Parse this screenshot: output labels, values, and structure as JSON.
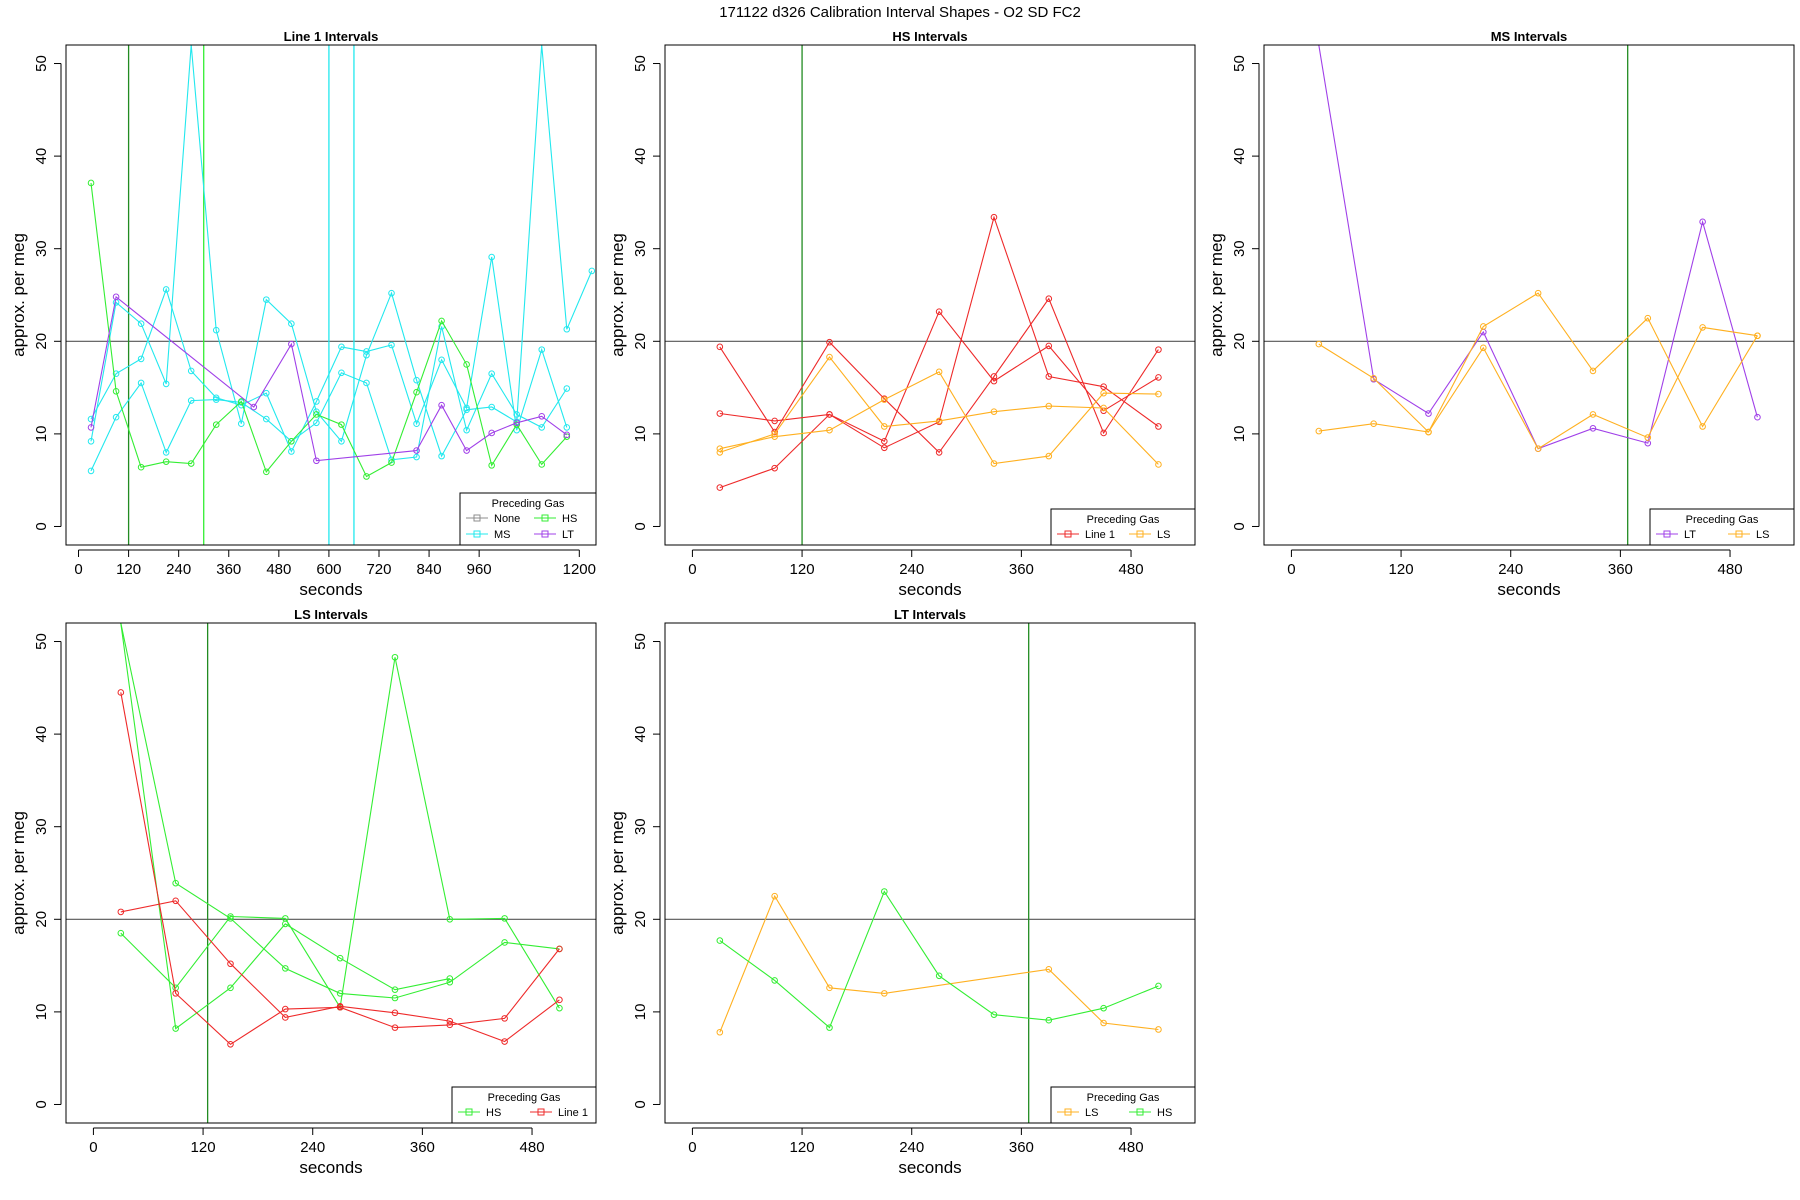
{
  "title": "171122   d326   Calibration Interval Shapes - O2 SD FC2",
  "colors": {
    "None": "#8c8c8c",
    "MS": "#22e8ee",
    "HS": "#33ee33",
    "LT": "#a040e8",
    "Line 1": "#ee2a2a",
    "LS": "#ffb020",
    "vline": "#228b22",
    "hline": "#555555"
  },
  "chart_data": [
    {
      "type": "line",
      "title": "Line 1 Intervals",
      "xlabel": "seconds",
      "ylabel": "approx. per meg",
      "xlim": [
        -30,
        1240
      ],
      "ylim": [
        -2,
        52
      ],
      "xticks": [
        0,
        120,
        240,
        360,
        480,
        600,
        720,
        840,
        960,
        1200
      ],
      "yticks": [
        0,
        10,
        20,
        30,
        40,
        50
      ],
      "hline": 20,
      "vlines": [
        {
          "x": 120,
          "color": "vline"
        },
        {
          "x": 300,
          "color": "HS"
        },
        {
          "x": 600,
          "color": "MS"
        },
        {
          "x": 660,
          "color": "MS"
        }
      ],
      "legend": {
        "title": "Preceding Gas",
        "position": "bottom-right",
        "cols": 2,
        "entries": [
          "None",
          "HS",
          "MS",
          "LT"
        ]
      },
      "series": [
        {
          "name": "MS",
          "x": [
            30,
            90,
            150,
            210,
            270,
            330,
            390,
            450,
            510,
            570,
            630,
            690,
            750,
            810,
            870,
            930,
            990,
            1050,
            1110,
            1170
          ],
          "y": [
            11.6,
            16.5,
            18.1,
            25.6,
            16.8,
            13.9,
            13.1,
            14.4,
            8.1,
            13.5,
            19.4,
            18.9,
            19.6,
            11.1,
            18.0,
            12.8,
            29.1,
            10.4,
            19.1,
            10.7
          ]
        },
        {
          "name": "MS",
          "x": [
            30,
            90,
            150,
            210,
            270,
            330,
            390,
            450,
            510,
            570,
            630,
            690,
            750,
            810,
            870,
            930,
            990,
            1050,
            1110,
            1170
          ],
          "y": [
            6.0,
            11.8,
            15.5,
            8.0,
            13.6,
            13.7,
            13.4,
            11.6,
            9.2,
            11.2,
            16.6,
            15.5,
            7.2,
            7.5,
            21.6,
            10.4,
            16.5,
            12.1,
            10.7,
            14.9
          ]
        },
        {
          "name": "MS",
          "x": [
            30,
            90,
            150,
            210,
            270,
            330,
            390,
            450,
            510,
            570,
            630,
            690,
            750,
            810,
            870,
            930,
            990,
            1050,
            1110,
            1170,
            1230
          ],
          "y": [
            9.2,
            24.2,
            21.9,
            15.4,
            52.0,
            21.2,
            11.1,
            24.5,
            21.9,
            12.4,
            9.2,
            18.5,
            25.2,
            15.8,
            7.6,
            12.6,
            12.9,
            11.3,
            52.0,
            21.3,
            27.6
          ]
        },
        {
          "name": "HS",
          "x": [
            30,
            90,
            150,
            210,
            270,
            330,
            390,
            450,
            510,
            570,
            630,
            690,
            750,
            810,
            870,
            930,
            990,
            1050,
            1110,
            1170
          ],
          "y": [
            37.1,
            14.6,
            6.4,
            7.0,
            6.8,
            11.0,
            13.5,
            5.9,
            9.2,
            12.1,
            11.0,
            5.4,
            6.9,
            14.5,
            22.2,
            17.5,
            6.6,
            11.0,
            6.7,
            9.7
          ]
        },
        {
          "name": "LT",
          "x": [
            30,
            90,
            420,
            510,
            570,
            810,
            870,
            930,
            990,
            1050,
            1110,
            1170
          ],
          "y": [
            10.7,
            24.8,
            12.9,
            19.7,
            7.1,
            8.2,
            13.1,
            8.2,
            10.1,
            11.2,
            11.9,
            9.9
          ]
        }
      ]
    },
    {
      "type": "line",
      "title": "HS Intervals",
      "xlabel": "seconds",
      "ylabel": "approx. per meg",
      "xlim": [
        -30,
        550
      ],
      "ylim": [
        -2,
        52
      ],
      "xticks": [
        0,
        120,
        240,
        360,
        480
      ],
      "yticks": [
        0,
        10,
        20,
        30,
        40,
        50
      ],
      "hline": 20,
      "vlines": [
        {
          "x": 120,
          "color": "vline"
        }
      ],
      "legend": {
        "title": "Preceding Gas",
        "position": "bottom-right",
        "cols": 2,
        "entries": [
          "Line 1",
          "LS"
        ]
      },
      "series": [
        {
          "name": "Line 1",
          "x": [
            30,
            90,
            150,
            210,
            270,
            330,
            390,
            450,
            510
          ],
          "y": [
            19.4,
            10.2,
            19.9,
            13.8,
            8.0,
            16.2,
            24.6,
            10.1,
            19.1
          ]
        },
        {
          "name": "Line 1",
          "x": [
            30,
            90,
            150,
            210,
            270,
            330,
            390,
            450,
            510
          ],
          "y": [
            12.2,
            11.4,
            12.1,
            9.2,
            23.2,
            15.7,
            19.5,
            12.5,
            16.1
          ]
        },
        {
          "name": "Line 1",
          "x": [
            30,
            90,
            150,
            210,
            270,
            330,
            390,
            450,
            510
          ],
          "y": [
            4.2,
            6.3,
            12.1,
            8.5,
            11.3,
            33.4,
            16.2,
            15.1,
            10.8
          ]
        },
        {
          "name": "LS",
          "x": [
            30,
            90,
            150,
            210,
            270,
            330,
            390,
            450,
            510
          ],
          "y": [
            8.0,
            10.0,
            18.3,
            10.8,
            11.4,
            12.4,
            13.0,
            12.8,
            6.7
          ]
        },
        {
          "name": "LS",
          "x": [
            30,
            90,
            150,
            210,
            270,
            330,
            390,
            450,
            510
          ],
          "y": [
            8.4,
            9.7,
            10.4,
            13.7,
            16.7,
            6.8,
            7.6,
            14.4,
            14.3
          ]
        }
      ]
    },
    {
      "type": "line",
      "title": "MS Intervals",
      "xlabel": "seconds",
      "ylabel": "approx. per meg",
      "xlim": [
        -30,
        550
      ],
      "ylim": [
        -2,
        52
      ],
      "xticks": [
        0,
        120,
        240,
        360,
        480
      ],
      "yticks": [
        0,
        10,
        20,
        30,
        40,
        50
      ],
      "hline": 20,
      "vlines": [
        {
          "x": 368,
          "color": "vline"
        }
      ],
      "legend": {
        "title": "Preceding Gas",
        "position": "bottom-right",
        "cols": 2,
        "entries": [
          "LT",
          "LS"
        ]
      },
      "series": [
        {
          "name": "LT",
          "x": [
            30,
            90,
            150,
            210,
            270,
            330,
            390,
            450,
            510
          ],
          "y": [
            52.0,
            15.9,
            12.2,
            21.0,
            8.4,
            10.6,
            9.0,
            32.9,
            11.8
          ]
        },
        {
          "name": "LS",
          "x": [
            30,
            90,
            150,
            210,
            270,
            330,
            390,
            450,
            510
          ],
          "y": [
            19.7,
            16.0,
            10.2,
            21.6,
            25.2,
            16.8,
            22.5,
            10.8,
            20.6
          ]
        },
        {
          "name": "LS",
          "x": [
            30,
            90,
            150,
            210,
            270,
            330,
            390,
            450,
            510
          ],
          "y": [
            10.3,
            11.1,
            10.2,
            19.3,
            8.4,
            12.1,
            9.6,
            21.5,
            20.6
          ]
        }
      ]
    },
    {
      "type": "line",
      "title": "LS Intervals",
      "xlabel": "seconds",
      "ylabel": "approx. per meg",
      "xlim": [
        -30,
        550
      ],
      "ylim": [
        -2,
        52
      ],
      "xticks": [
        0,
        120,
        240,
        360,
        480
      ],
      "yticks": [
        0,
        10,
        20,
        30,
        40,
        50
      ],
      "hline": 20,
      "vlines": [
        {
          "x": 125,
          "color": "vline"
        }
      ],
      "legend": {
        "title": "Preceding Gas",
        "position": "bottom-right",
        "cols": 2,
        "entries": [
          "HS",
          "Line 1"
        ]
      },
      "series": [
        {
          "name": "HS",
          "x": [
            30,
            90,
            150,
            210,
            270,
            330,
            390,
            450,
            510
          ],
          "y": [
            18.5,
            12.6,
            20.3,
            20.1,
            10.5,
            48.3,
            20.0,
            20.1,
            10.4
          ]
        },
        {
          "name": "HS",
          "x": [
            30,
            90,
            150,
            210,
            270,
            330,
            390,
            450,
            510
          ],
          "y": [
            52.0,
            23.9,
            20.1,
            14.7,
            12.0,
            11.5,
            13.2,
            17.5,
            16.8
          ]
        },
        {
          "name": "HS",
          "x": [
            30,
            90,
            150,
            210,
            270,
            330,
            390
          ],
          "y": [
            52.0,
            8.2,
            12.6,
            19.5,
            15.8,
            12.4,
            13.6
          ]
        },
        {
          "name": "Line 1",
          "x": [
            30,
            90,
            150,
            210,
            270,
            330,
            390,
            450,
            510
          ],
          "y": [
            44.5,
            12.0,
            6.5,
            10.3,
            10.5,
            8.3,
            8.6,
            9.3,
            16.8
          ]
        },
        {
          "name": "Line 1",
          "x": [
            30,
            90,
            150,
            210,
            270,
            330,
            390,
            450,
            510
          ],
          "y": [
            20.8,
            22.0,
            15.2,
            9.4,
            10.6,
            9.9,
            9.0,
            6.8,
            11.3
          ]
        }
      ]
    },
    {
      "type": "line",
      "title": "LT Intervals",
      "xlabel": "seconds",
      "ylabel": "approx. per meg",
      "xlim": [
        -30,
        550
      ],
      "ylim": [
        -2,
        52
      ],
      "xticks": [
        0,
        120,
        240,
        360,
        480
      ],
      "yticks": [
        0,
        10,
        20,
        30,
        40,
        50
      ],
      "hline": 20,
      "vlines": [
        {
          "x": 368,
          "color": "vline"
        }
      ],
      "legend": {
        "title": "Preceding Gas",
        "position": "bottom-right",
        "cols": 2,
        "entries": [
          "LS",
          "HS"
        ]
      },
      "series": [
        {
          "name": "LS",
          "x": [
            30,
            90,
            150,
            210,
            390,
            450,
            510
          ],
          "y": [
            7.8,
            22.5,
            12.6,
            12.0,
            14.6,
            8.8,
            8.1
          ]
        },
        {
          "name": "HS",
          "x": [
            30,
            90,
            150,
            210,
            270,
            330,
            390,
            450,
            510
          ],
          "y": [
            17.7,
            13.4,
            8.3,
            23.0,
            13.9,
            9.7,
            9.1,
            10.4,
            12.8
          ]
        }
      ]
    }
  ]
}
